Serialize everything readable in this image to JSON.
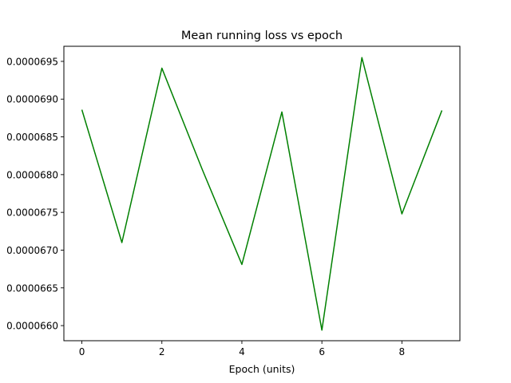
{
  "chart_data": {
    "type": "line",
    "title": "Mean running loss vs epoch",
    "xlabel": "Epoch (units)",
    "ylabel": "",
    "xlim": [
      -0.45,
      9.45
    ],
    "ylim": [
      6.58e-05,
      6.97e-05
    ],
    "xticks": [
      0,
      2,
      4,
      6,
      8
    ],
    "xtick_labels": [
      "0",
      "2",
      "4",
      "6",
      "8"
    ],
    "yticks": [
      6.6e-05,
      6.65e-05,
      6.7e-05,
      6.75e-05,
      6.8e-05,
      6.85e-05,
      6.9e-05,
      6.95e-05
    ],
    "ytick_labels": [
      "0.0000660",
      "0.0000665",
      "0.0000670",
      "0.0000675",
      "0.0000680",
      "0.0000685",
      "0.0000690",
      "0.0000695"
    ],
    "grid": false,
    "series": [
      {
        "color": "#008000",
        "x": [
          0,
          1,
          2,
          3,
          4,
          5,
          6,
          7,
          8,
          9
        ],
        "y": [
          6.886e-05,
          6.71e-05,
          6.941e-05,
          6.808e-05,
          6.681e-05,
          6.883e-05,
          6.594e-05,
          6.955e-05,
          6.748e-05,
          6.885e-05
        ]
      }
    ]
  }
}
